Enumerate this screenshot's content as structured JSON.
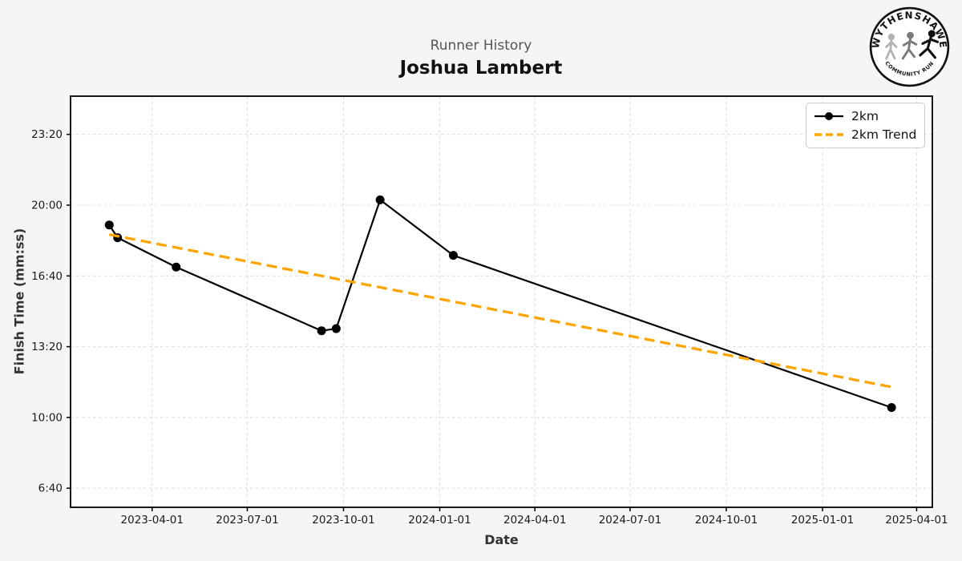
{
  "header": {
    "suptitle": "Runner History",
    "title": "Joshua Lambert"
  },
  "logo": {
    "top_text": "WYTHENSHAWE",
    "bottom_text": "COMMUNITY RUN"
  },
  "legend": {
    "items": [
      "2km",
      "2km Trend"
    ]
  },
  "chart_data": {
    "type": "line",
    "title": "Runner History",
    "subtitle": "Joshua Lambert",
    "xlabel": "Date",
    "ylabel": "Finish Time (mm:ss)",
    "grid": true,
    "legend_position": "upper right",
    "xlim": [
      "2023-01-13",
      "2025-04-16"
    ],
    "ylim_seconds": [
      346,
      1508
    ],
    "x_ticks": [
      "2023-04-01",
      "2023-07-01",
      "2023-10-01",
      "2024-01-01",
      "2024-04-01",
      "2024-07-01",
      "2024-10-01",
      "2025-01-01",
      "2025-04-01"
    ],
    "y_ticks": [
      {
        "label": "23:20",
        "seconds": 1400
      },
      {
        "label": "20:00",
        "seconds": 1200
      },
      {
        "label": "16:40",
        "seconds": 1000
      },
      {
        "label": "13:20",
        "seconds": 800
      },
      {
        "label": "10:00",
        "seconds": 600
      },
      {
        "label": "6:40",
        "seconds": 400
      }
    ],
    "series": [
      {
        "name": "2km",
        "color": "#000000",
        "style": "solid",
        "marker": "circle",
        "points": [
          {
            "date": "2023-02-19",
            "time": "19:04"
          },
          {
            "date": "2023-02-27",
            "time": "18:28"
          },
          {
            "date": "2023-04-24",
            "time": "17:05"
          },
          {
            "date": "2023-09-10",
            "time": "14:05"
          },
          {
            "date": "2023-09-24",
            "time": "14:11"
          },
          {
            "date": "2023-11-05",
            "time": "20:15"
          },
          {
            "date": "2024-01-14",
            "time": "17:38"
          },
          {
            "date": "2025-03-08",
            "time": "10:28"
          }
        ]
      },
      {
        "name": "2km Trend",
        "color": "#FFA500",
        "style": "dashed",
        "marker": "none",
        "points": [
          {
            "date": "2023-02-19",
            "time": "18:37"
          },
          {
            "date": "2025-03-08",
            "time": "11:26"
          }
        ]
      }
    ]
  }
}
